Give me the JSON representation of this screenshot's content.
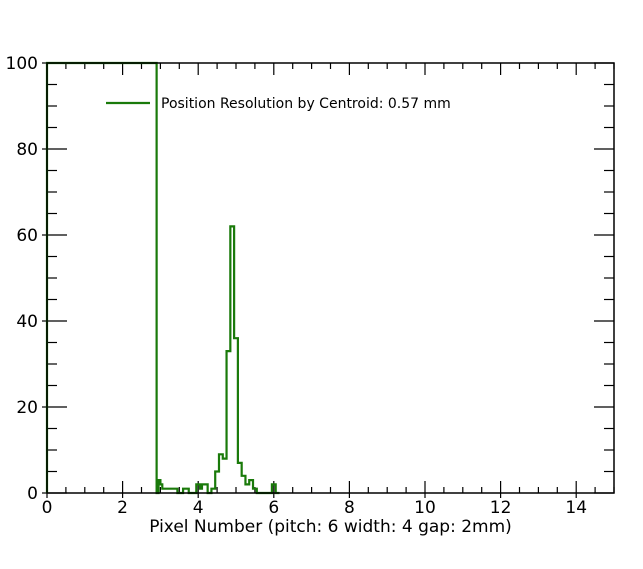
{
  "chart_data": {
    "type": "histogram",
    "xlabel": "Pixel Number  (pitch: 6 width: 4 gap: 2mm)",
    "ylabel": "",
    "xlim": [
      0,
      15
    ],
    "ylim": [
      0,
      100
    ],
    "xticks": [
      0,
      2,
      4,
      6,
      8,
      10,
      12,
      14
    ],
    "yticks": [
      0,
      20,
      40,
      60,
      80,
      100
    ],
    "xtick_labels": [
      "0",
      "2",
      "4",
      "6",
      "8",
      "10",
      "12",
      "14"
    ],
    "ytick_labels": [
      "0",
      "20",
      "40",
      "60",
      "80",
      "100"
    ],
    "bin_width": 0.1,
    "grid": false,
    "legend_position": "top-left",
    "series": [
      {
        "name": "Position Resolution by Centroid: 0.57 mm",
        "color": "#1a7a0a",
        "bins": [
          {
            "x": 0.0,
            "y": 100
          },
          {
            "x": 2.9,
            "y": 0
          },
          {
            "x": 2.95,
            "y": 3
          },
          {
            "x": 3.0,
            "y": 2
          },
          {
            "x": 3.05,
            "y": 1
          },
          {
            "x": 3.45,
            "y": 0
          },
          {
            "x": 3.6,
            "y": 1
          },
          {
            "x": 3.75,
            "y": 0
          },
          {
            "x": 3.95,
            "y": 2
          },
          {
            "x": 4.05,
            "y": 1
          },
          {
            "x": 4.1,
            "y": 2
          },
          {
            "x": 4.25,
            "y": 0
          },
          {
            "x": 4.35,
            "y": 1
          },
          {
            "x": 4.45,
            "y": 5
          },
          {
            "x": 4.55,
            "y": 9
          },
          {
            "x": 4.65,
            "y": 8
          },
          {
            "x": 4.75,
            "y": 33
          },
          {
            "x": 4.85,
            "y": 62
          },
          {
            "x": 4.95,
            "y": 36
          },
          {
            "x": 5.05,
            "y": 7
          },
          {
            "x": 5.15,
            "y": 4
          },
          {
            "x": 5.25,
            "y": 2
          },
          {
            "x": 5.35,
            "y": 3
          },
          {
            "x": 5.45,
            "y": 1
          },
          {
            "x": 5.55,
            "y": 0
          },
          {
            "x": 5.95,
            "y": 2
          },
          {
            "x": 6.05,
            "y": 0
          }
        ]
      }
    ]
  }
}
